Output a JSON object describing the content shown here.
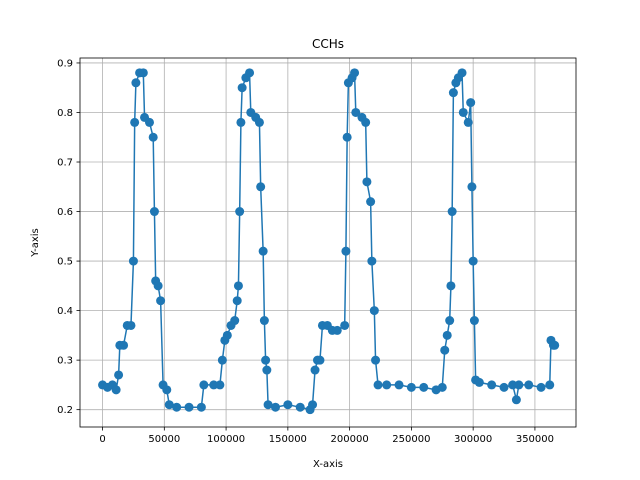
{
  "chart_data": {
    "type": "line",
    "title": "CCHs",
    "xlabel": "X-axis",
    "ylabel": "Y-axis",
    "xlim": [
      -18250,
      383250
    ],
    "ylim": [
      0.165,
      0.91
    ],
    "x_ticks": [
      0,
      50000,
      100000,
      150000,
      200000,
      250000,
      300000,
      350000
    ],
    "x_tick_labels": [
      "0",
      "50000",
      "100000",
      "150000",
      "200000",
      "250000",
      "300000",
      "350000"
    ],
    "y_ticks": [
      0.2,
      0.3,
      0.4,
      0.5,
      0.6,
      0.7,
      0.8,
      0.9
    ],
    "y_tick_labels": [
      "0.2",
      "0.3",
      "0.4",
      "0.5",
      "0.6",
      "0.7",
      "0.8",
      "0.9"
    ],
    "grid": true,
    "marker": "circle",
    "color": "#1f77b4",
    "series": [
      {
        "points": [
          [
            0,
            0.25
          ],
          [
            4000,
            0.245
          ],
          [
            8000,
            0.25
          ],
          [
            11000,
            0.24
          ],
          [
            13000,
            0.27
          ],
          [
            14000,
            0.33
          ],
          [
            17000,
            0.33
          ],
          [
            20000,
            0.37
          ],
          [
            23000,
            0.37
          ],
          [
            25000,
            0.5
          ],
          [
            26000,
            0.78
          ],
          [
            27000,
            0.86
          ],
          [
            30000,
            0.88
          ],
          [
            33000,
            0.88
          ],
          [
            34000,
            0.79
          ],
          [
            38000,
            0.78
          ],
          [
            41000,
            0.75
          ],
          [
            42000,
            0.6
          ],
          [
            43000,
            0.46
          ],
          [
            45000,
            0.45
          ],
          [
            47000,
            0.42
          ],
          [
            49000,
            0.25
          ],
          [
            52000,
            0.24
          ],
          [
            54000,
            0.21
          ],
          [
            60000,
            0.205
          ],
          [
            70000,
            0.205
          ],
          [
            80000,
            0.205
          ],
          [
            82000,
            0.25
          ],
          [
            90000,
            0.25
          ],
          [
            95000,
            0.25
          ],
          [
            97000,
            0.3
          ],
          [
            99000,
            0.34
          ],
          [
            101000,
            0.35
          ],
          [
            104000,
            0.37
          ],
          [
            107000,
            0.38
          ],
          [
            109000,
            0.42
          ],
          [
            110000,
            0.45
          ],
          [
            111000,
            0.6
          ],
          [
            112000,
            0.78
          ],
          [
            113000,
            0.85
          ],
          [
            116000,
            0.87
          ],
          [
            119000,
            0.88
          ],
          [
            120000,
            0.8
          ],
          [
            124000,
            0.79
          ],
          [
            127000,
            0.78
          ],
          [
            128000,
            0.65
          ],
          [
            130000,
            0.52
          ],
          [
            131000,
            0.38
          ],
          [
            132000,
            0.3
          ],
          [
            133000,
            0.28
          ],
          [
            134000,
            0.21
          ],
          [
            140000,
            0.205
          ],
          [
            150000,
            0.21
          ],
          [
            160000,
            0.205
          ],
          [
            168000,
            0.2
          ],
          [
            170000,
            0.21
          ],
          [
            172000,
            0.28
          ],
          [
            174000,
            0.3
          ],
          [
            176000,
            0.3
          ],
          [
            178000,
            0.37
          ],
          [
            182000,
            0.37
          ],
          [
            186000,
            0.36
          ],
          [
            190000,
            0.36
          ],
          [
            196000,
            0.37
          ],
          [
            197000,
            0.52
          ],
          [
            198000,
            0.75
          ],
          [
            199000,
            0.86
          ],
          [
            202000,
            0.87
          ],
          [
            204000,
            0.88
          ],
          [
            205000,
            0.8
          ],
          [
            210000,
            0.79
          ],
          [
            213000,
            0.78
          ],
          [
            214000,
            0.66
          ],
          [
            217000,
            0.62
          ],
          [
            218000,
            0.5
          ],
          [
            220000,
            0.4
          ],
          [
            221000,
            0.3
          ],
          [
            223000,
            0.25
          ],
          [
            230000,
            0.25
          ],
          [
            240000,
            0.25
          ],
          [
            250000,
            0.245
          ],
          [
            260000,
            0.245
          ],
          [
            270000,
            0.24
          ],
          [
            275000,
            0.245
          ],
          [
            277000,
            0.32
          ],
          [
            279000,
            0.35
          ],
          [
            281000,
            0.38
          ],
          [
            282000,
            0.45
          ],
          [
            283000,
            0.6
          ],
          [
            284000,
            0.84
          ],
          [
            286000,
            0.86
          ],
          [
            288000,
            0.87
          ],
          [
            291000,
            0.88
          ],
          [
            292000,
            0.8
          ],
          [
            296000,
            0.78
          ],
          [
            298000,
            0.82
          ],
          [
            299000,
            0.65
          ],
          [
            300000,
            0.5
          ],
          [
            301000,
            0.38
          ],
          [
            302000,
            0.26
          ],
          [
            305000,
            0.255
          ],
          [
            315000,
            0.25
          ],
          [
            325000,
            0.245
          ],
          [
            332000,
            0.25
          ],
          [
            335000,
            0.22
          ],
          [
            337000,
            0.25
          ],
          [
            345000,
            0.25
          ],
          [
            355000,
            0.245
          ],
          [
            362000,
            0.25
          ],
          [
            363000,
            0.34
          ],
          [
            365000,
            0.33
          ],
          [
            366000,
            0.33
          ]
        ]
      }
    ]
  }
}
